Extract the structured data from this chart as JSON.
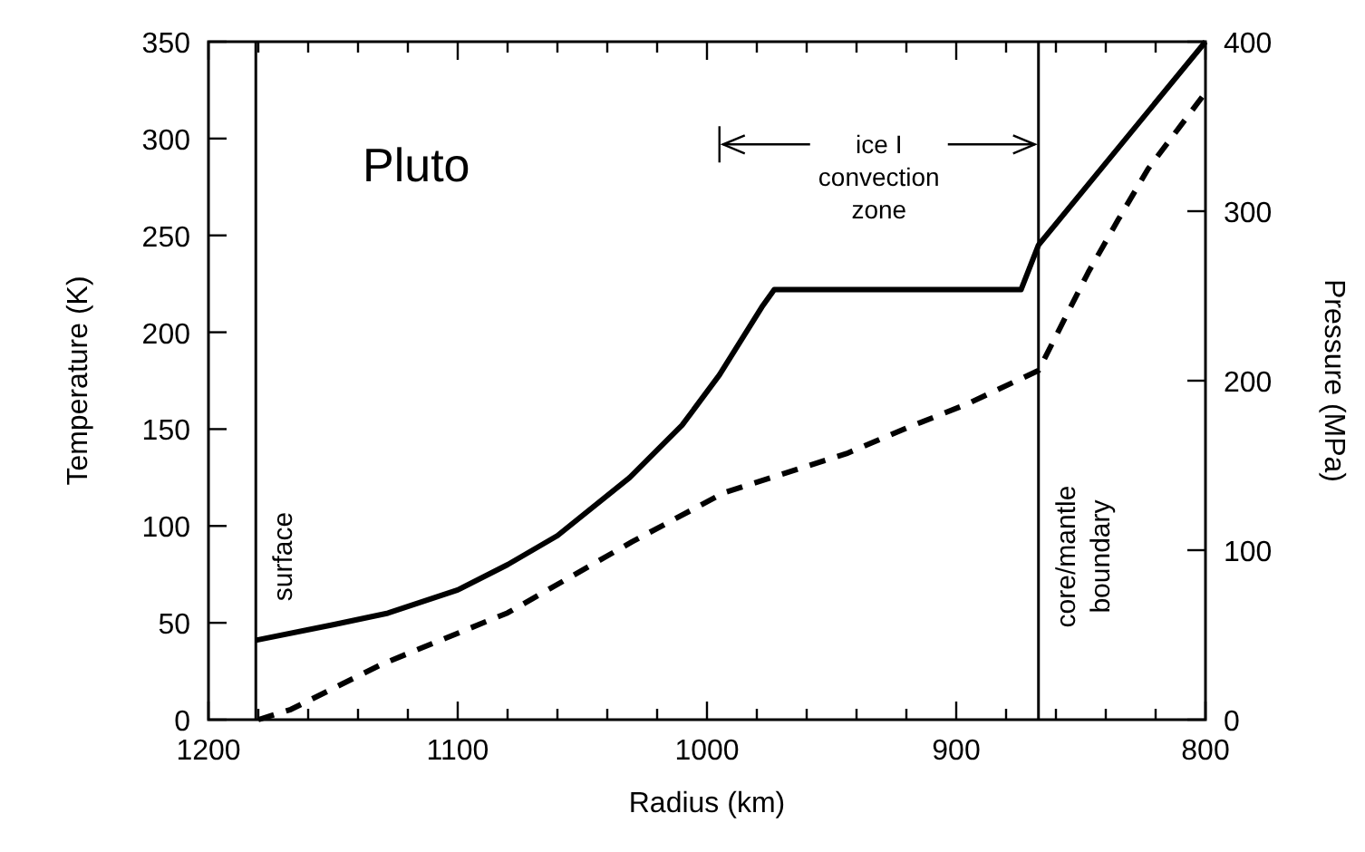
{
  "chart_data": {
    "type": "line",
    "xlabel": "Radius (km)",
    "ylabel": "Temperature (K)",
    "y2label": "Pressure (MPa)",
    "xlim": [
      1200,
      800
    ],
    "xticks": [
      1200,
      {
        "value": 1180,
        "label": null
      },
      {
        "value": 1160,
        "label": null
      },
      {
        "value": 1140,
        "label": null
      },
      {
        "value": 1120,
        "label": null
      },
      1100,
      {
        "value": 1080,
        "label": null
      },
      {
        "value": 1060,
        "label": null
      },
      {
        "value": 1040,
        "label": null
      },
      {
        "value": 1020,
        "label": null
      },
      1000,
      {
        "value": 980,
        "label": null
      },
      {
        "value": 960,
        "label": null
      },
      {
        "value": 940,
        "label": null
      },
      {
        "value": 920,
        "label": null
      },
      900,
      {
        "value": 880,
        "label": null
      },
      {
        "value": 860,
        "label": null
      },
      {
        "value": 840,
        "label": null
      },
      {
        "value": 820,
        "label": null
      },
      800
    ],
    "ylim": [
      0,
      350
    ],
    "yticks": [
      0,
      50,
      100,
      150,
      200,
      250,
      300,
      350
    ],
    "y2lim": [
      0,
      400
    ],
    "y2ticks": [
      0,
      100,
      200,
      300,
      400
    ],
    "grid": false,
    "series": [
      {
        "color": "#000000",
        "line_style": "solid",
        "axis": "y",
        "x": [
          1181,
          1150,
          1128,
          1100,
          1080,
          1060,
          1031,
          1010,
          995,
          978,
          973,
          874,
          867,
          800
        ],
        "values": [
          41,
          49,
          55,
          67,
          80,
          95,
          125,
          152,
          178,
          213,
          222,
          222,
          245,
          350
        ]
      },
      {
        "color": "#000000",
        "line_style": "dashed",
        "axis": "y2",
        "x": [
          1180,
          1167,
          1130,
          1080,
          1030,
          993,
          944,
          920,
          896,
          867,
          847,
          835,
          823,
          801,
          800
        ],
        "values": [
          0,
          6,
          33,
          63,
          105,
          134,
          157,
          172,
          186,
          206,
          264,
          295,
          325,
          368,
          370
        ]
      }
    ],
    "ref_lines": [
      {
        "axis": "x",
        "value": 1181,
        "label": "surface"
      },
      {
        "axis": "x",
        "value": 867,
        "label": "core/mantle boundary"
      }
    ],
    "annotations": [
      "Pluto",
      {
        "text": "ice I\nconvection\nzone",
        "x": 867,
        "y": 297
      }
    ]
  }
}
